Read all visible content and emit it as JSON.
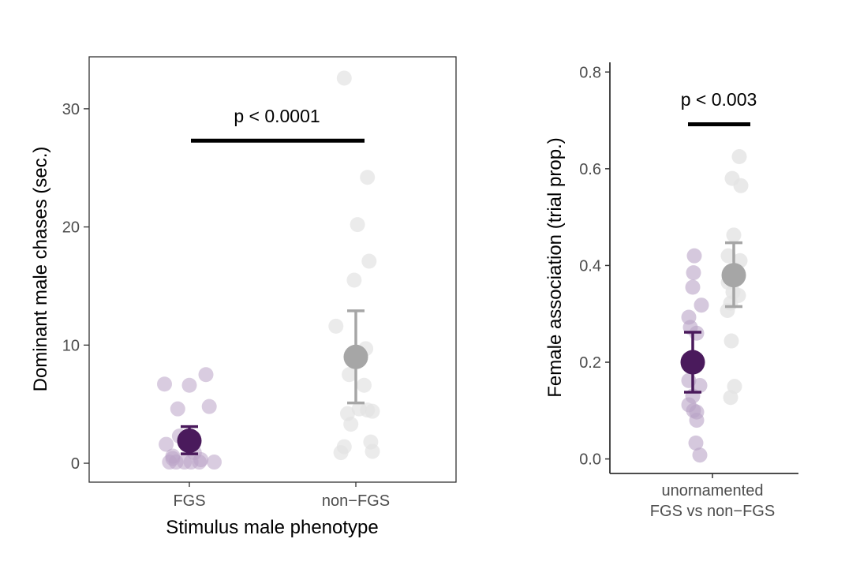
{
  "colors": {
    "fgs": "#4a1a5c",
    "fgs_points": "#b9a3c6",
    "non_fgs": "#a6a6a6",
    "non_fgs_points": "#e3e3e3",
    "significance_bar": "#000000",
    "axis": "#333333"
  },
  "chart_data": [
    {
      "type": "scatter",
      "ylabel": "Dominant male chases (sec.)",
      "xlabel": "Stimulus male phenotype",
      "categories": [
        "FGS",
        "non−FGS"
      ],
      "ylim": [
        -1.6,
        34.4
      ],
      "yticks": [
        0,
        10,
        20,
        30
      ],
      "ytick_labels": [
        "0",
        "10",
        "20",
        "30"
      ],
      "panel_border": true,
      "significance": {
        "label": "p < 0.0001",
        "y": 27.3,
        "from": "FGS",
        "to": "non−FGS"
      },
      "series": [
        {
          "category": "FGS",
          "mean": 1.9,
          "lower": 0.8,
          "upper": 3.1,
          "points": [
            {
              "x": -0.15,
              "y": 6.7
            },
            {
              "x": 0.0,
              "y": 6.6
            },
            {
              "x": 0.1,
              "y": 7.5
            },
            {
              "x": 0.12,
              "y": 4.8
            },
            {
              "x": -0.07,
              "y": 4.6
            },
            {
              "x": -0.06,
              "y": 2.3
            },
            {
              "x": -0.14,
              "y": 1.6
            },
            {
              "x": -0.1,
              "y": 0.6
            },
            {
              "x": 0.03,
              "y": 0.9
            },
            {
              "x": 0.07,
              "y": 0.3
            },
            {
              "x": -0.12,
              "y": 0.1
            },
            {
              "x": -0.08,
              "y": 0.1
            },
            {
              "x": -0.03,
              "y": 0.1
            },
            {
              "x": 0.01,
              "y": 0.1
            },
            {
              "x": 0.06,
              "y": 0.1
            },
            {
              "x": 0.15,
              "y": 0.1
            },
            {
              "x": -0.1,
              "y": 0.4
            }
          ]
        },
        {
          "category": "non−FGS",
          "mean": 9.0,
          "lower": 5.1,
          "upper": 12.9,
          "points": [
            {
              "x": -0.07,
              "y": 32.6
            },
            {
              "x": 0.07,
              "y": 24.2
            },
            {
              "x": 0.01,
              "y": 20.2
            },
            {
              "x": 0.08,
              "y": 17.1
            },
            {
              "x": -0.01,
              "y": 15.5
            },
            {
              "x": -0.12,
              "y": 11.6
            },
            {
              "x": 0.06,
              "y": 9.7
            },
            {
              "x": -0.04,
              "y": 7.5
            },
            {
              "x": 0.05,
              "y": 6.6
            },
            {
              "x": 0.07,
              "y": 4.5
            },
            {
              "x": -0.05,
              "y": 4.2
            },
            {
              "x": 0.02,
              "y": 4.6
            },
            {
              "x": 0.1,
              "y": 4.4
            },
            {
              "x": -0.03,
              "y": 3.3
            },
            {
              "x": 0.09,
              "y": 1.8
            },
            {
              "x": -0.07,
              "y": 1.4
            },
            {
              "x": -0.09,
              "y": 0.9
            },
            {
              "x": 0.1,
              "y": 1.0
            }
          ]
        }
      ]
    },
    {
      "type": "scatter",
      "ylabel": "Female association (trial prop.)",
      "xlabel": "",
      "category_label": [
        "unornamented",
        "FGS vs non−FGS"
      ],
      "ylim": [
        -0.03,
        0.82
      ],
      "yticks": [
        0.0,
        0.2,
        0.4,
        0.6,
        0.8
      ],
      "ytick_labels": [
        "0.0",
        "0.2",
        "0.4",
        "0.6",
        "0.8"
      ],
      "panel_border": false,
      "significance": {
        "label": "p < 0.003",
        "y": 0.692
      },
      "series": [
        {
          "category": "FGS",
          "mean": 0.2,
          "lower": 0.138,
          "upper": 0.262,
          "points": [
            {
              "x": -0.23,
              "y": 0.42
            },
            {
              "x": -0.24,
              "y": 0.385
            },
            {
              "x": -0.25,
              "y": 0.355
            },
            {
              "x": -0.14,
              "y": 0.318
            },
            {
              "x": -0.3,
              "y": 0.293
            },
            {
              "x": -0.28,
              "y": 0.272
            },
            {
              "x": -0.2,
              "y": 0.26
            },
            {
              "x": -0.27,
              "y": 0.205
            },
            {
              "x": -0.3,
              "y": 0.162
            },
            {
              "x": -0.16,
              "y": 0.152
            },
            {
              "x": -0.25,
              "y": 0.13
            },
            {
              "x": -0.3,
              "y": 0.112
            },
            {
              "x": -0.24,
              "y": 0.1
            },
            {
              "x": -0.2,
              "y": 0.08
            },
            {
              "x": -0.21,
              "y": 0.033
            },
            {
              "x": -0.16,
              "y": 0.008
            },
            {
              "x": -0.2,
              "y": 0.097
            }
          ]
        },
        {
          "category": "non−FGS",
          "mean": 0.38,
          "lower": 0.315,
          "upper": 0.447,
          "points": [
            {
              "x": 0.34,
              "y": 0.625
            },
            {
              "x": 0.25,
              "y": 0.58
            },
            {
              "x": 0.36,
              "y": 0.565
            },
            {
              "x": 0.27,
              "y": 0.463
            },
            {
              "x": 0.2,
              "y": 0.42
            },
            {
              "x": 0.35,
              "y": 0.41
            },
            {
              "x": 0.2,
              "y": 0.365
            },
            {
              "x": 0.26,
              "y": 0.345
            },
            {
              "x": 0.33,
              "y": 0.338
            },
            {
              "x": 0.23,
              "y": 0.322
            },
            {
              "x": 0.19,
              "y": 0.307
            },
            {
              "x": 0.24,
              "y": 0.244
            },
            {
              "x": 0.28,
              "y": 0.15
            },
            {
              "x": 0.23,
              "y": 0.127
            }
          ]
        }
      ]
    }
  ]
}
